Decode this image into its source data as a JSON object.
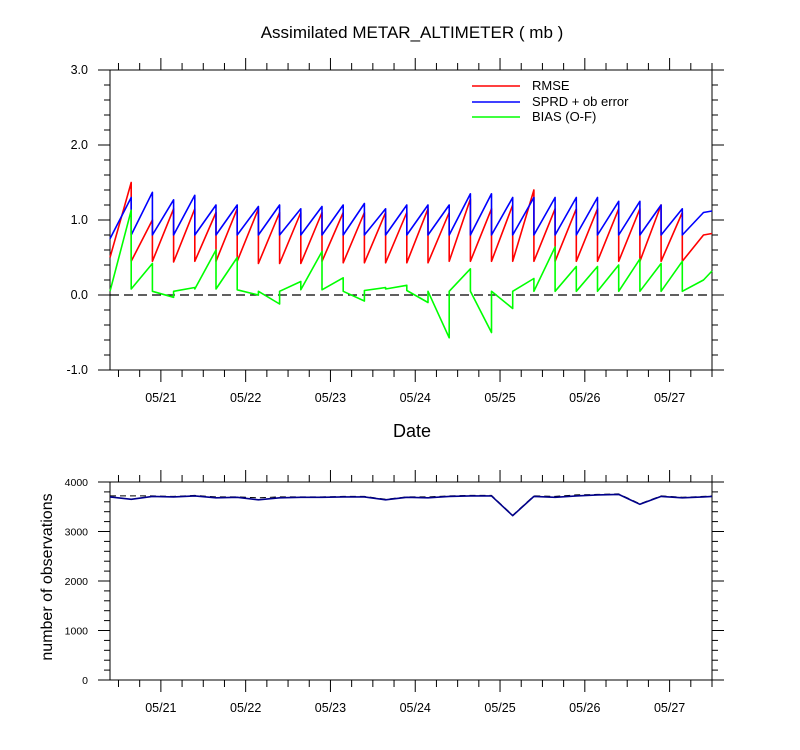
{
  "chart_data": [
    {
      "type": "line",
      "title": "Assimilated METAR_ALTIMETER ( mb )",
      "xlabel": "Date",
      "ylabel": "",
      "xlim": [
        20.4,
        27.5
      ],
      "ylim": [
        -1.0,
        3.0
      ],
      "yticks": [
        -1.0,
        0.0,
        1.0,
        2.0,
        3.0
      ],
      "ytick_labels": [
        "-1.0",
        "0.0",
        "1.0",
        "2.0",
        "3.0"
      ],
      "xtick_labels": [
        "05/21",
        "05/22",
        "05/23",
        "05/24",
        "05/25",
        "05/26",
        "05/27"
      ],
      "xticks": [
        21,
        22,
        23,
        24,
        25,
        26,
        27
      ],
      "reference_line": {
        "y": 0.0,
        "style": "dashed"
      },
      "legend_position": "top-right",
      "series": [
        {
          "name": "RMSE",
          "color": "#ff0000",
          "x": [
            20.4,
            20.65,
            20.65,
            20.9,
            20.9,
            21.15,
            21.15,
            21.4,
            21.4,
            21.65,
            21.65,
            21.9,
            21.9,
            22.15,
            22.15,
            22.4,
            22.4,
            22.65,
            22.65,
            22.9,
            22.9,
            23.15,
            23.15,
            23.4,
            23.4,
            23.65,
            23.65,
            23.9,
            23.9,
            24.15,
            24.15,
            24.4,
            24.4,
            24.65,
            24.65,
            24.9,
            24.9,
            25.15,
            25.15,
            25.4,
            25.4,
            25.65,
            25.65,
            25.9,
            25.9,
            26.15,
            26.15,
            26.4,
            26.4,
            26.65,
            26.65,
            26.9,
            26.9,
            27.15,
            27.15,
            27.4,
            27.5
          ],
          "y": [
            0.5,
            1.5,
            0.45,
            1.0,
            0.45,
            1.15,
            0.44,
            1.15,
            0.45,
            1.1,
            0.45,
            1.15,
            0.45,
            1.15,
            0.42,
            1.1,
            0.42,
            1.1,
            0.42,
            1.1,
            0.45,
            1.1,
            0.43,
            1.1,
            0.43,
            1.1,
            0.43,
            1.1,
            0.43,
            1.15,
            0.43,
            1.1,
            0.45,
            1.28,
            0.45,
            1.15,
            0.45,
            1.2,
            0.45,
            1.4,
            0.45,
            1.15,
            0.45,
            1.15,
            0.45,
            1.15,
            0.45,
            1.15,
            0.45,
            1.15,
            0.45,
            1.2,
            0.45,
            1.1,
            0.45,
            0.8,
            0.82
          ]
        },
        {
          "name": "SPRD + ob error",
          "color": "#0000ff",
          "x": [
            20.4,
            20.65,
            20.65,
            20.9,
            20.9,
            21.15,
            21.15,
            21.4,
            21.4,
            21.65,
            21.65,
            21.9,
            21.9,
            22.15,
            22.15,
            22.4,
            22.4,
            22.65,
            22.65,
            22.9,
            22.9,
            23.15,
            23.15,
            23.4,
            23.4,
            23.65,
            23.65,
            23.9,
            23.9,
            24.15,
            24.15,
            24.4,
            24.4,
            24.65,
            24.65,
            24.9,
            24.9,
            25.15,
            25.15,
            25.4,
            25.4,
            25.65,
            25.65,
            25.9,
            25.9,
            26.15,
            26.15,
            26.4,
            26.4,
            26.65,
            26.65,
            26.9,
            26.9,
            27.15,
            27.15,
            27.4,
            27.5
          ],
          "y": [
            0.75,
            1.3,
            0.8,
            1.37,
            0.8,
            1.27,
            0.8,
            1.33,
            0.8,
            1.2,
            0.8,
            1.2,
            0.8,
            1.18,
            0.8,
            1.2,
            0.8,
            1.15,
            0.8,
            1.18,
            0.8,
            1.2,
            0.8,
            1.22,
            0.8,
            1.15,
            0.8,
            1.2,
            0.8,
            1.2,
            0.8,
            1.2,
            0.8,
            1.35,
            0.8,
            1.35,
            0.8,
            1.3,
            0.8,
            1.3,
            0.8,
            1.3,
            0.8,
            1.3,
            0.8,
            1.3,
            0.8,
            1.25,
            0.8,
            1.25,
            0.8,
            1.2,
            0.8,
            1.15,
            0.8,
            1.1,
            1.12
          ]
        },
        {
          "name": "BIAS (O-F)",
          "color": "#00ff00",
          "x": [
            20.4,
            20.65,
            20.65,
            20.9,
            20.9,
            21.15,
            21.15,
            21.4,
            21.4,
            21.65,
            21.65,
            21.9,
            21.9,
            22.15,
            22.15,
            22.4,
            22.4,
            22.65,
            22.65,
            22.9,
            22.9,
            23.15,
            23.15,
            23.4,
            23.4,
            23.65,
            23.65,
            23.9,
            23.9,
            24.15,
            24.15,
            24.4,
            24.4,
            24.65,
            24.65,
            24.9,
            24.9,
            25.15,
            25.15,
            25.4,
            25.4,
            25.65,
            25.65,
            25.9,
            25.9,
            26.15,
            26.15,
            26.4,
            26.4,
            26.65,
            26.65,
            26.9,
            26.9,
            27.15,
            27.15,
            27.4,
            27.5
          ],
          "y": [
            0.05,
            1.13,
            0.08,
            0.42,
            0.05,
            -0.03,
            0.05,
            0.1,
            0.08,
            0.6,
            0.08,
            0.5,
            0.07,
            0.0,
            0.05,
            -0.12,
            0.05,
            0.18,
            0.07,
            0.58,
            0.07,
            0.23,
            0.05,
            -0.08,
            0.06,
            0.1,
            0.08,
            0.13,
            0.06,
            -0.1,
            0.05,
            -0.57,
            0.05,
            0.35,
            0.05,
            -0.5,
            0.05,
            -0.18,
            0.05,
            0.22,
            0.05,
            0.64,
            0.05,
            0.38,
            0.05,
            0.38,
            0.05,
            0.4,
            0.05,
            0.48,
            0.05,
            0.42,
            0.05,
            0.45,
            0.05,
            0.2,
            0.32
          ]
        }
      ]
    },
    {
      "type": "line",
      "title": "",
      "xlabel": "",
      "ylabel": "number of observations",
      "xlim": [
        20.4,
        27.5
      ],
      "ylim": [
        0,
        4000
      ],
      "yticks": [
        0,
        1000,
        2000,
        3000,
        4000
      ],
      "ytick_labels": [
        "0",
        "1000",
        "2000",
        "3000",
        "4000"
      ],
      "xtick_labels": [
        "05/21",
        "05/22",
        "05/23",
        "05/24",
        "05/25",
        "05/26",
        "05/27"
      ],
      "xticks": [
        21,
        22,
        23,
        24,
        25,
        26,
        27
      ],
      "series": [
        {
          "color": "#000000",
          "style": "dashed",
          "x": [
            20.4,
            20.65,
            20.9,
            21.15,
            21.4,
            21.65,
            21.9,
            22.15,
            22.4,
            22.65,
            22.9,
            23.15,
            23.4,
            23.65,
            23.9,
            24.15,
            24.4,
            24.65,
            24.9,
            25.15,
            25.4,
            25.65,
            25.9,
            26.15,
            26.4,
            26.65,
            26.9,
            27.15,
            27.4,
            27.5
          ],
          "y": [
            3720,
            3720,
            3720,
            3710,
            3730,
            3700,
            3700,
            3680,
            3700,
            3700,
            3700,
            3710,
            3710,
            3650,
            3700,
            3700,
            3720,
            3730,
            3730,
            3330,
            3720,
            3710,
            3740,
            3750,
            3760,
            3560,
            3720,
            3690,
            3710,
            3720
          ]
        },
        {
          "color": "#00008b",
          "style": "solid",
          "x": [
            20.4,
            20.65,
            20.9,
            21.15,
            21.4,
            21.65,
            21.9,
            22.15,
            22.4,
            22.65,
            22.9,
            23.15,
            23.4,
            23.65,
            23.9,
            24.15,
            24.4,
            24.65,
            24.9,
            25.15,
            25.4,
            25.65,
            25.9,
            26.15,
            26.4,
            26.65,
            26.9,
            27.15,
            27.4,
            27.5
          ],
          "y": [
            3700,
            3650,
            3710,
            3700,
            3720,
            3680,
            3690,
            3640,
            3680,
            3690,
            3690,
            3700,
            3700,
            3640,
            3690,
            3680,
            3710,
            3720,
            3720,
            3320,
            3710,
            3690,
            3720,
            3740,
            3750,
            3550,
            3710,
            3680,
            3700,
            3710
          ]
        }
      ]
    }
  ]
}
